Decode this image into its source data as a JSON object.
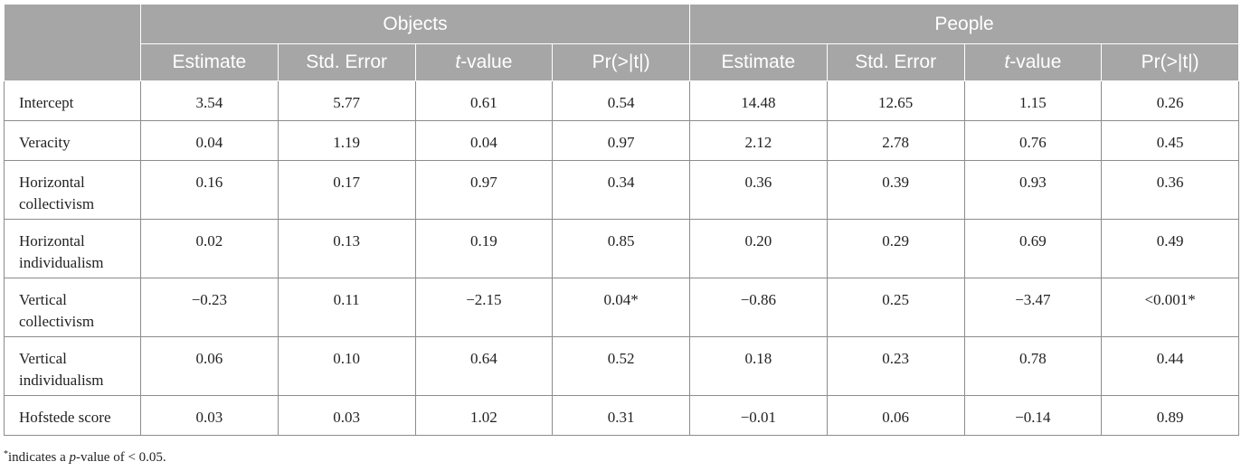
{
  "table": {
    "groups": [
      "Objects",
      "People"
    ],
    "subheaders": [
      {
        "pre": "Estimate",
        "it": "",
        "post": ""
      },
      {
        "pre": "Std. Error",
        "it": "",
        "post": ""
      },
      {
        "pre": "",
        "it": "t",
        "post": "-value"
      },
      {
        "pre": "Pr(>|t|)",
        "it": "",
        "post": ""
      },
      {
        "pre": "Estimate",
        "it": "",
        "post": ""
      },
      {
        "pre": "Std. Error",
        "it": "",
        "post": ""
      },
      {
        "pre": "",
        "it": "t",
        "post": "-value"
      },
      {
        "pre": "Pr(>|t|)",
        "it": "",
        "post": ""
      }
    ],
    "rows": [
      {
        "label": "Intercept",
        "values": [
          "3.54",
          "5.77",
          "0.61",
          "0.54",
          "14.48",
          "12.65",
          "1.15",
          "0.26"
        ]
      },
      {
        "label": "Veracity",
        "values": [
          "0.04",
          "1.19",
          "0.04",
          "0.97",
          "2.12",
          "2.78",
          "0.76",
          "0.45"
        ]
      },
      {
        "label": "Horizontal collectivism",
        "values": [
          "0.16",
          "0.17",
          "0.97",
          "0.34",
          "0.36",
          "0.39",
          "0.93",
          "0.36"
        ]
      },
      {
        "label": "Horizontal individualism",
        "values": [
          "0.02",
          "0.13",
          "0.19",
          "0.85",
          "0.20",
          "0.29",
          "0.69",
          "0.49"
        ]
      },
      {
        "label": "Vertical collectivism",
        "values": [
          "−0.23",
          "0.11",
          "−2.15",
          "0.04*",
          "−0.86",
          "0.25",
          "−3.47",
          "<0.001*"
        ]
      },
      {
        "label": "Vertical individualism",
        "values": [
          "0.06",
          "0.10",
          "0.64",
          "0.52",
          "0.18",
          "0.23",
          "0.78",
          "0.44"
        ]
      },
      {
        "label": "Hofstede score",
        "values": [
          "0.03",
          "0.03",
          "1.02",
          "0.31",
          "−0.01",
          "0.06",
          "−0.14",
          "0.89"
        ]
      }
    ]
  },
  "footnote": {
    "marker": "*",
    "text_before": "indicates a ",
    "text_italic": "p",
    "text_after": "-value of < 0.05."
  }
}
